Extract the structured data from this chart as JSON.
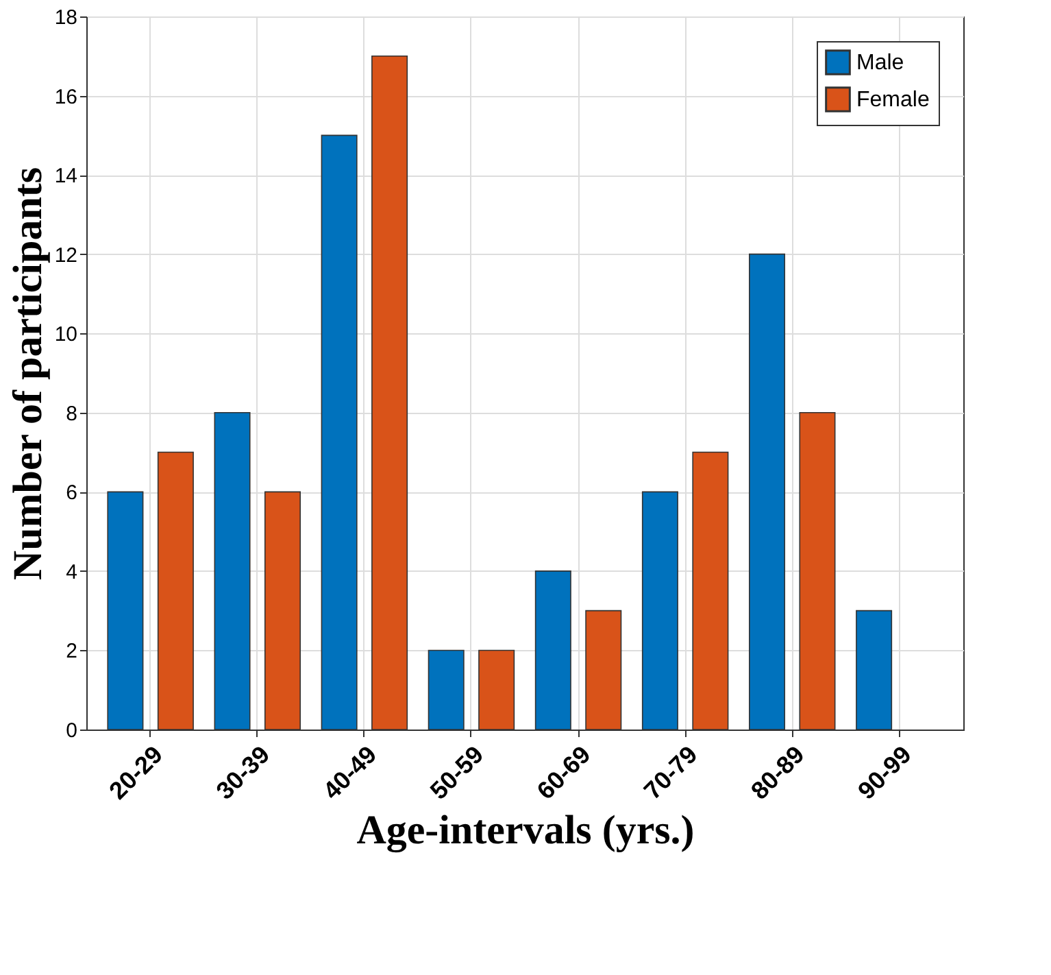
{
  "chart_data": {
    "type": "bar",
    "xlabel": "Age-intervals (yrs.)",
    "ylabel": "Number of participants",
    "categories": [
      "20-29",
      "30-39",
      "40-49",
      "50-59",
      "60-69",
      "70-79",
      "80-89",
      "90-99"
    ],
    "series": [
      {
        "name": "Male",
        "color": "#0072bd",
        "values": [
          6,
          8,
          15,
          2,
          4,
          6,
          12,
          3
        ]
      },
      {
        "name": "Female",
        "color": "#d95319",
        "values": [
          7,
          6,
          17,
          2,
          3,
          7,
          8,
          null
        ]
      }
    ],
    "ylim": [
      0,
      18
    ],
    "yticks": [
      0,
      2,
      4,
      6,
      8,
      10,
      12,
      14,
      16,
      18
    ],
    "grid": true,
    "legend": "top right"
  }
}
